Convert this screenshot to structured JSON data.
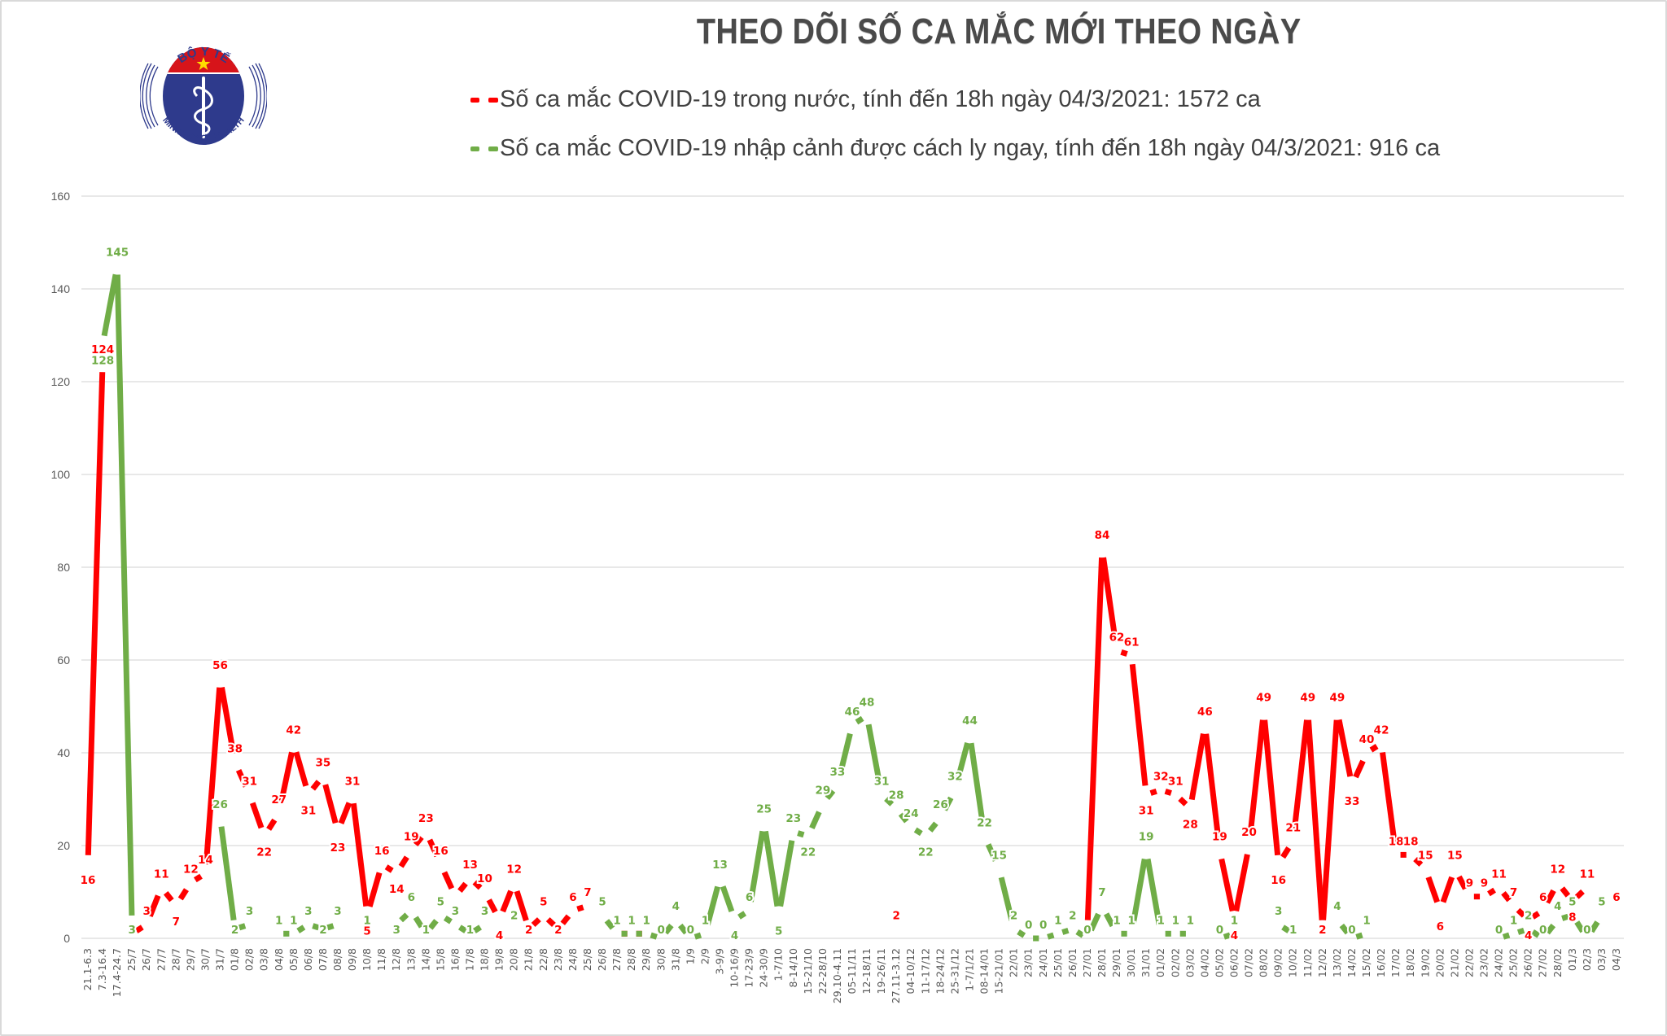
{
  "header": {
    "title": "THEO DÕI SỐ CA MẮC MỚI THEO NGÀY",
    "logo": {
      "top_text": "BỘ Y TẾ",
      "bottom_text": "MINISTRY OF HEALTH",
      "icon": "caduceus-icon"
    }
  },
  "legend": [
    {
      "label": "Số ca mắc COVID-19 trong nước, tính đến 18h ngày 04/3/2021: 1572 ca",
      "color": "#ff0000"
    },
    {
      "label": "Số ca mắc COVID-19 nhập cảnh được cách ly ngay, tính đến 18h ngày 04/3/2021: 916 ca",
      "color": "#70ad47"
    }
  ],
  "colors": {
    "domestic": "#ff0000",
    "imported": "#70ad47",
    "grid": "#d9d9d9",
    "axis_text": "#595959",
    "title": "#4a4a4a",
    "logo_blue": "#2e3a8c",
    "logo_red": "#d7141a",
    "logo_star": "#ffde00"
  },
  "chart_data": {
    "type": "line",
    "title": "THEO DÕI SỐ CA MẮC MỚI THEO NGÀY",
    "xlabel": "",
    "ylabel": "",
    "ylim": [
      0,
      160
    ],
    "yticks": [
      0,
      20,
      40,
      60,
      80,
      100,
      120,
      140,
      160
    ],
    "grid": true,
    "legend_position": "top",
    "categories": [
      "21.1-6.3",
      "7.3-16.4",
      "17.4-24.7",
      "25/7",
      "26/7",
      "27/7",
      "28/7",
      "29/7",
      "30/7",
      "31/7",
      "01/8",
      "02/8",
      "03/8",
      "04/8",
      "05/8",
      "06/8",
      "07/8",
      "08/8",
      "09/8",
      "10/8",
      "11/8",
      "12/8",
      "13/8",
      "14/8",
      "15/8",
      "16/8",
      "17/8",
      "18/8",
      "19/8",
      "20/8",
      "21/8",
      "22/8",
      "23/8",
      "24/8",
      "25/8",
      "26/8",
      "27/8",
      "28/8",
      "29/8",
      "30/8",
      "31/8",
      "1/9",
      "2/9",
      "3-9/9",
      "10-16/9",
      "17-23/9",
      "24-30/9",
      "1-7/10",
      "8-14/10",
      "15-21/10",
      "22-28/10",
      "29.10-4.11",
      "05-11/11",
      "12-18/11",
      "19-26/11",
      "27.11-3.12",
      "04-10/12",
      "11-17/12",
      "18-24/12",
      "25-31/12",
      "1-7/1/21",
      "08-14/01",
      "15-21/01",
      "22/01",
      "23/01",
      "24/01",
      "25/01",
      "26/01",
      "27/01",
      "28/01",
      "29/01",
      "30/01",
      "31/01",
      "01/02",
      "02/02",
      "03/02",
      "04/02",
      "05/02",
      "06/02",
      "07/02",
      "08/02",
      "09/02",
      "10/02",
      "11/02",
      "12/02",
      "13/02",
      "14/02",
      "15/02",
      "16/02",
      "17/02",
      "18/02",
      "19/02",
      "20/02",
      "21/02",
      "22/02",
      "23/02",
      "24/02",
      "25/02",
      "26/02",
      "27/02",
      "28/02",
      "01/3",
      "02/3",
      "03/3",
      "04/3"
    ],
    "series": [
      {
        "name": "Số ca mắc COVID-19 trong nước",
        "color": "#ff0000",
        "values": [
          16,
          124,
          null,
          1,
          3,
          11,
          7,
          12,
          14,
          56,
          38,
          31,
          22,
          27,
          42,
          31,
          35,
          23,
          31,
          5,
          16,
          14,
          19,
          23,
          16,
          9,
          13,
          10,
          4,
          12,
          2,
          5,
          2,
          6,
          7,
          null,
          1,
          1,
          1,
          null,
          null,
          null,
          1,
          null,
          null,
          null,
          null,
          null,
          null,
          null,
          null,
          null,
          null,
          null,
          null,
          2,
          null,
          null,
          null,
          null,
          null,
          null,
          null,
          null,
          null,
          null,
          null,
          null,
          2,
          84,
          62,
          61,
          31,
          32,
          31,
          28,
          46,
          19,
          4,
          20,
          49,
          16,
          21,
          49,
          2,
          49,
          33,
          40,
          42,
          18,
          18,
          15,
          6,
          15,
          9,
          9,
          11,
          7,
          4,
          6,
          12,
          8,
          11,
          null,
          6
        ]
      },
      {
        "name": "Số ca mắc COVID-19 nhập cảnh được cách ly ngay",
        "color": "#70ad47",
        "values": [
          null,
          128,
          145,
          3,
          null,
          null,
          null,
          null,
          null,
          26,
          2,
          3,
          null,
          1,
          1,
          3,
          2,
          3,
          null,
          1,
          null,
          3,
          6,
          1,
          5,
          3,
          1,
          3,
          null,
          2,
          null,
          null,
          null,
          null,
          null,
          5,
          1,
          1,
          1,
          0,
          4,
          0,
          1,
          13,
          4,
          6,
          25,
          5,
          23,
          22,
          29,
          33,
          46,
          48,
          31,
          28,
          24,
          22,
          26,
          32,
          44,
          22,
          15,
          2,
          0,
          0,
          1,
          2,
          0,
          7,
          1,
          1,
          19,
          1,
          1,
          1,
          null,
          0,
          1,
          null,
          null,
          3,
          1,
          null,
          null,
          4,
          0,
          1,
          null,
          null,
          null,
          null,
          null,
          null,
          null,
          null,
          0,
          1,
          2,
          0,
          4,
          5,
          0,
          5,
          null
        ]
      }
    ]
  }
}
